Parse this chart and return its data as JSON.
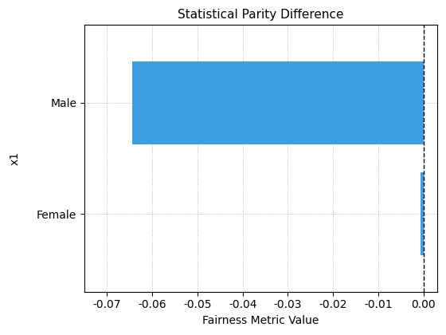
{
  "title": "Statistical Parity Difference",
  "xlabel": "Fairness Metric Value",
  "ylabel": "x1",
  "categories": [
    "Female",
    "Male"
  ],
  "values": [
    -0.0007,
    -0.0645
  ],
  "bar_color": "#3D9EE0",
  "xlim": [
    -0.075,
    0.003
  ],
  "ylim": [
    -0.7,
    1.7
  ],
  "xticks": [
    -0.07,
    -0.06,
    -0.05,
    -0.04,
    -0.03,
    -0.02,
    -0.01,
    0
  ],
  "vline_x": 0,
  "vline_color": "#000000",
  "vline_style": "--",
  "grid_color": "#AAAAAA",
  "grid_style": ":",
  "bg_color": "#FFFFFF",
  "title_fontsize": 11,
  "label_fontsize": 10,
  "tick_fontsize": 10,
  "bar_height": 0.75
}
